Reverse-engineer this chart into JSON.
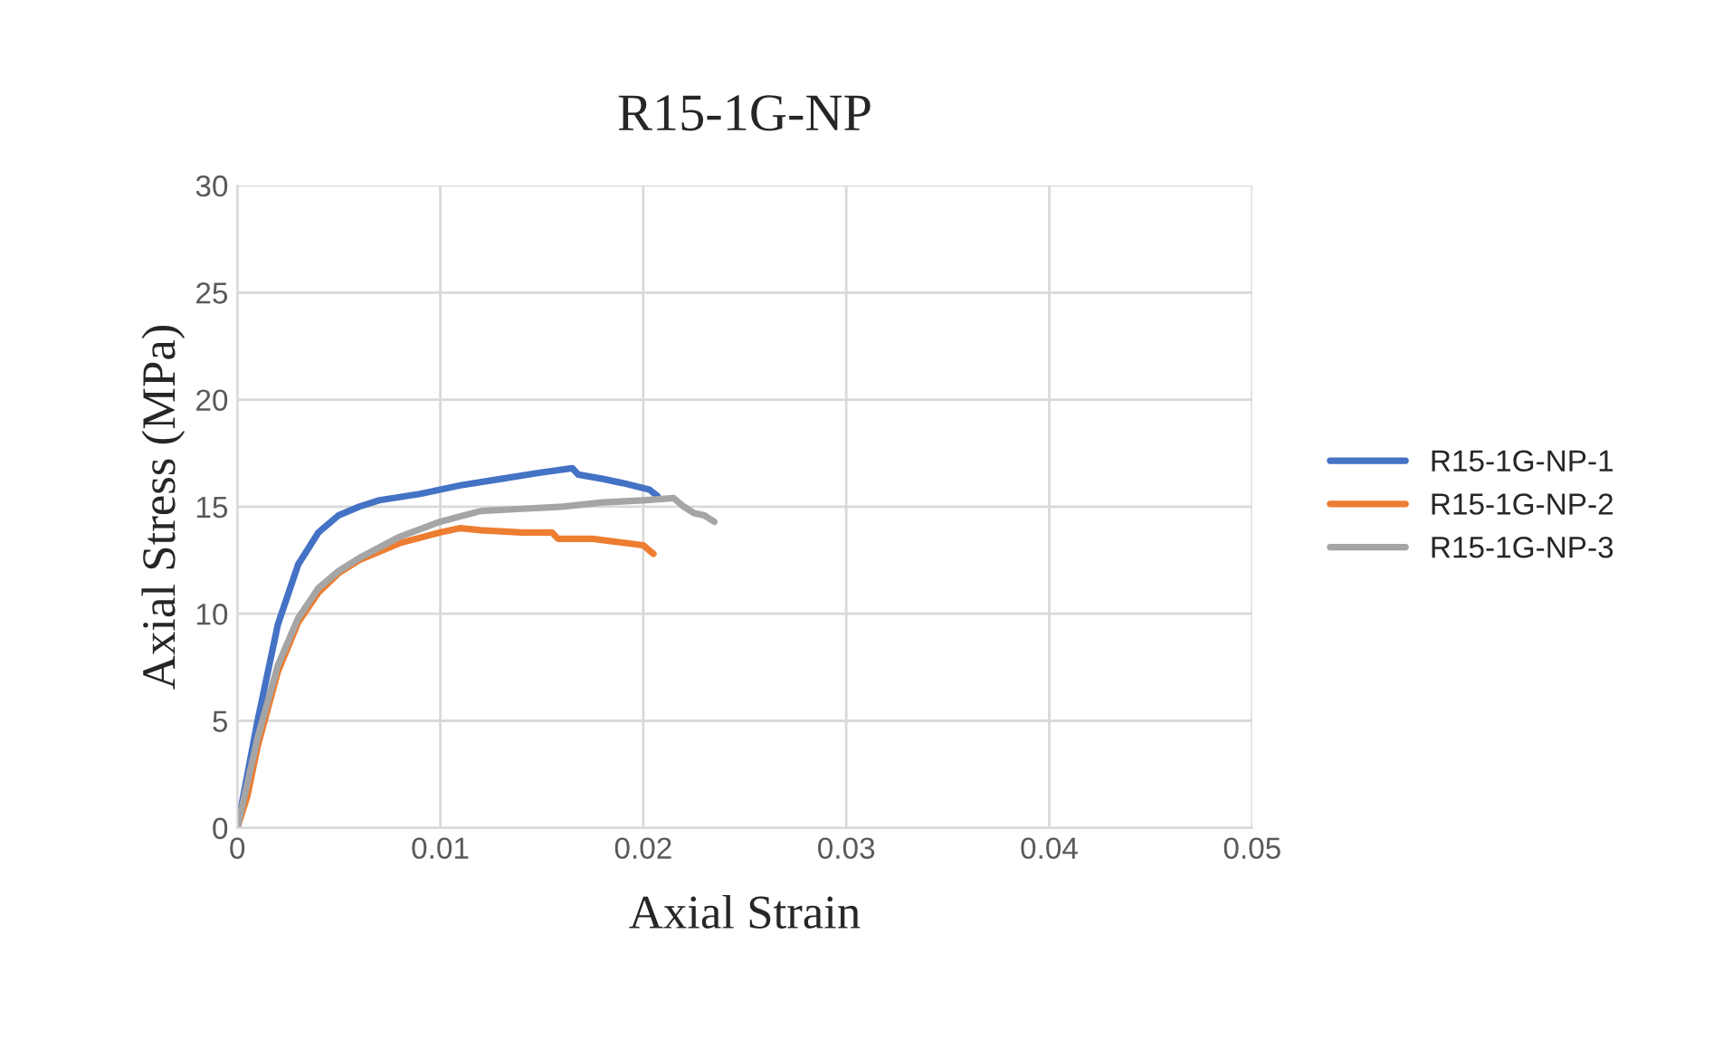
{
  "chart_data": {
    "type": "line",
    "title": "R15-1G-NP",
    "xlabel": "Axial Strain",
    "ylabel": "Axial Stress (MPa)",
    "xlim": [
      0,
      0.05
    ],
    "ylim": [
      0,
      30
    ],
    "xticks": [
      0,
      0.01,
      0.02,
      0.03,
      0.04,
      0.05
    ],
    "yticks": [
      0,
      5,
      10,
      15,
      20,
      25,
      30
    ],
    "grid": true,
    "legend": "right",
    "marker": "none",
    "line_style": "solid",
    "series": [
      {
        "name": "R15-1G-NP-1",
        "color": "#4472c4",
        "x": [
          0,
          0.001,
          0.002,
          0.003,
          0.004,
          0.005,
          0.006,
          0.007,
          0.009,
          0.011,
          0.013,
          0.015,
          0.0165,
          0.0168,
          0.018,
          0.019,
          0.0203,
          0.0207
        ],
        "values": [
          0,
          5,
          9.5,
          12.3,
          13.8,
          14.6,
          15.0,
          15.3,
          15.6,
          16.0,
          16.3,
          16.6,
          16.8,
          16.5,
          16.3,
          16.1,
          15.8,
          15.5
        ]
      },
      {
        "name": "R15-1G-NP-2",
        "color": "#ed7d31",
        "x": [
          0,
          0.0005,
          0.001,
          0.002,
          0.003,
          0.004,
          0.005,
          0.006,
          0.008,
          0.01,
          0.011,
          0.012,
          0.014,
          0.0155,
          0.0158,
          0.0175,
          0.02,
          0.0205
        ],
        "values": [
          0,
          1.5,
          3.8,
          7.3,
          9.6,
          11.0,
          11.9,
          12.5,
          13.3,
          13.8,
          14.0,
          13.9,
          13.8,
          13.8,
          13.5,
          13.5,
          13.2,
          12.8
        ]
      },
      {
        "name": "R15-1G-NP-3",
        "color": "#a5a5a5",
        "x": [
          0,
          0.001,
          0.002,
          0.003,
          0.004,
          0.005,
          0.006,
          0.008,
          0.01,
          0.012,
          0.014,
          0.016,
          0.018,
          0.02,
          0.0215,
          0.022,
          0.0225,
          0.023,
          0.0235
        ],
        "values": [
          0,
          4.2,
          7.6,
          9.8,
          11.2,
          12.0,
          12.6,
          13.6,
          14.3,
          14.8,
          14.9,
          15.0,
          15.2,
          15.3,
          15.4,
          15.0,
          14.7,
          14.6,
          14.3
        ]
      }
    ]
  }
}
